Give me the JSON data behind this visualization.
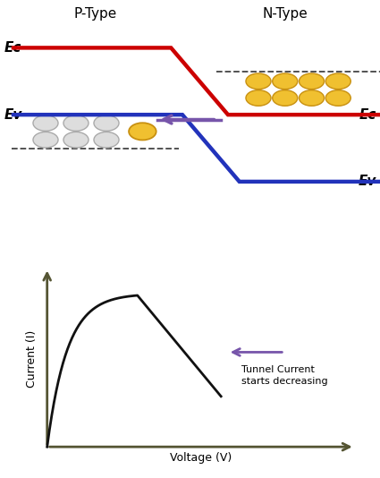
{
  "bg_color": "#ffffff",
  "p_type_label": "P-Type",
  "n_type_label": "N-Type",
  "ec_left_label": "Ec",
  "ev_left_label": "Ev",
  "ec_right_label": "Ec",
  "ev_right_label": "Ev",
  "red_line_color": "#cc0000",
  "blue_line_color": "#2233bb",
  "purple_arrow_color": "#7755aa",
  "dashed_line_color": "#444444",
  "gold_face_color": "#f0c030",
  "gold_edge_color": "#c89010",
  "gray_face_color": "#dddddd",
  "gray_edge_color": "#aaaaaa",
  "xlabel": "Voltage (V)",
  "ylabel": "Current (I)",
  "arrow_annotation_color": "#7755aa",
  "annotation_text": "Tunnel Current\nstarts decreasing",
  "curve_color": "#111111",
  "axis_color": "#555533"
}
